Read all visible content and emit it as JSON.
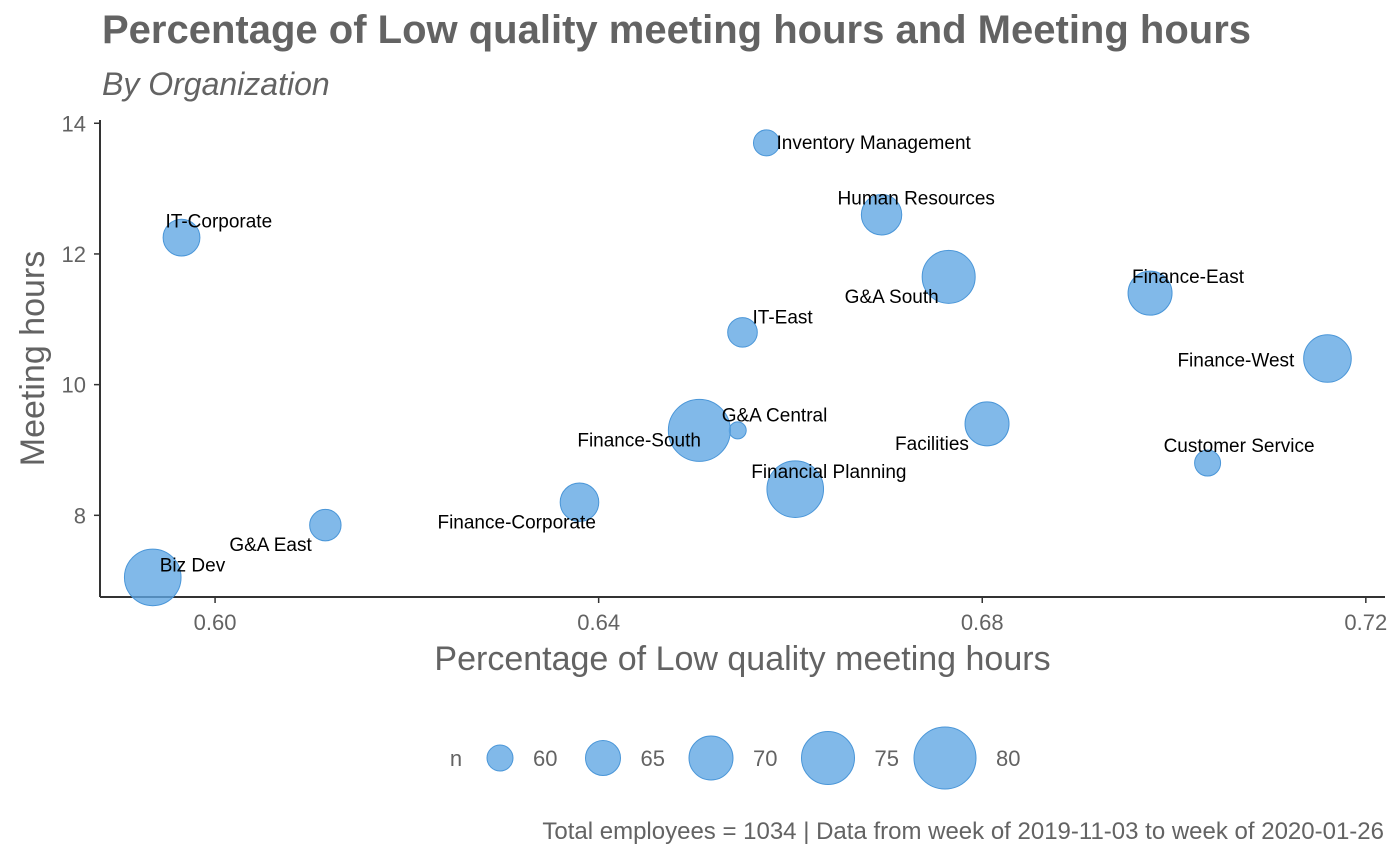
{
  "chart_data": {
    "type": "scatter",
    "title": "Percentage of Low quality meeting hours and Meeting hours",
    "subtitle": "By Organization",
    "xlabel": "Percentage of Low quality meeting hours",
    "ylabel": "Meeting hours",
    "caption": "Total employees = 1034 | Data from week of 2019-11-03 to week of 2020-01-26",
    "xlim": [
      0.588,
      0.722
    ],
    "ylim": [
      6.75,
      14.05
    ],
    "xticks": [
      0.6,
      0.64,
      0.68,
      0.72
    ],
    "xtick_labels": [
      "0.60",
      "0.64",
      "0.68",
      "0.72"
    ],
    "yticks": [
      8,
      10,
      12,
      14
    ],
    "ytick_labels": [
      "8",
      "10",
      "12",
      "14"
    ],
    "grid": false,
    "point_color": "#5DA5E3",
    "point_stroke": "#4A96D8",
    "size_variable": "n",
    "points": [
      {
        "label": "Inventory Management",
        "x": 0.6575,
        "y": 13.7,
        "n": 60
      },
      {
        "label": "Human Resources",
        "x": 0.6695,
        "y": 12.6,
        "n": 68
      },
      {
        "label": "IT-Corporate",
        "x": 0.5965,
        "y": 12.25,
        "n": 66
      },
      {
        "label": "G&A South",
        "x": 0.6765,
        "y": 11.65,
        "n": 75
      },
      {
        "label": "Finance-East",
        "x": 0.6975,
        "y": 11.4,
        "n": 70
      },
      {
        "label": "IT-East",
        "x": 0.655,
        "y": 10.8,
        "n": 62
      },
      {
        "label": "Finance-West",
        "x": 0.716,
        "y": 10.4,
        "n": 72
      },
      {
        "label": "G&A Central",
        "x": 0.6545,
        "y": 9.3,
        "n": 55
      },
      {
        "label": "Facilities",
        "x": 0.6805,
        "y": 9.4,
        "n": 70
      },
      {
        "label": "Finance-South",
        "x": 0.6505,
        "y": 9.3,
        "n": 80
      },
      {
        "label": "Customer Service",
        "x": 0.7035,
        "y": 8.8,
        "n": 60
      },
      {
        "label": "Financial Planning",
        "x": 0.6605,
        "y": 8.4,
        "n": 77
      },
      {
        "label": "Finance-Corporate",
        "x": 0.638,
        "y": 8.2,
        "n": 67
      },
      {
        "label": "G&A East",
        "x": 0.6115,
        "y": 7.85,
        "n": 63
      },
      {
        "label": "Biz Dev",
        "x": 0.5935,
        "y": 7.05,
        "n": 77
      }
    ],
    "legend": {
      "title": "n",
      "placement": "bottom",
      "entries": [
        {
          "label": "60",
          "n": 60
        },
        {
          "label": "65",
          "n": 65
        },
        {
          "label": "70",
          "n": 70
        },
        {
          "label": "75",
          "n": 75
        },
        {
          "label": "80",
          "n": 80
        }
      ]
    }
  }
}
